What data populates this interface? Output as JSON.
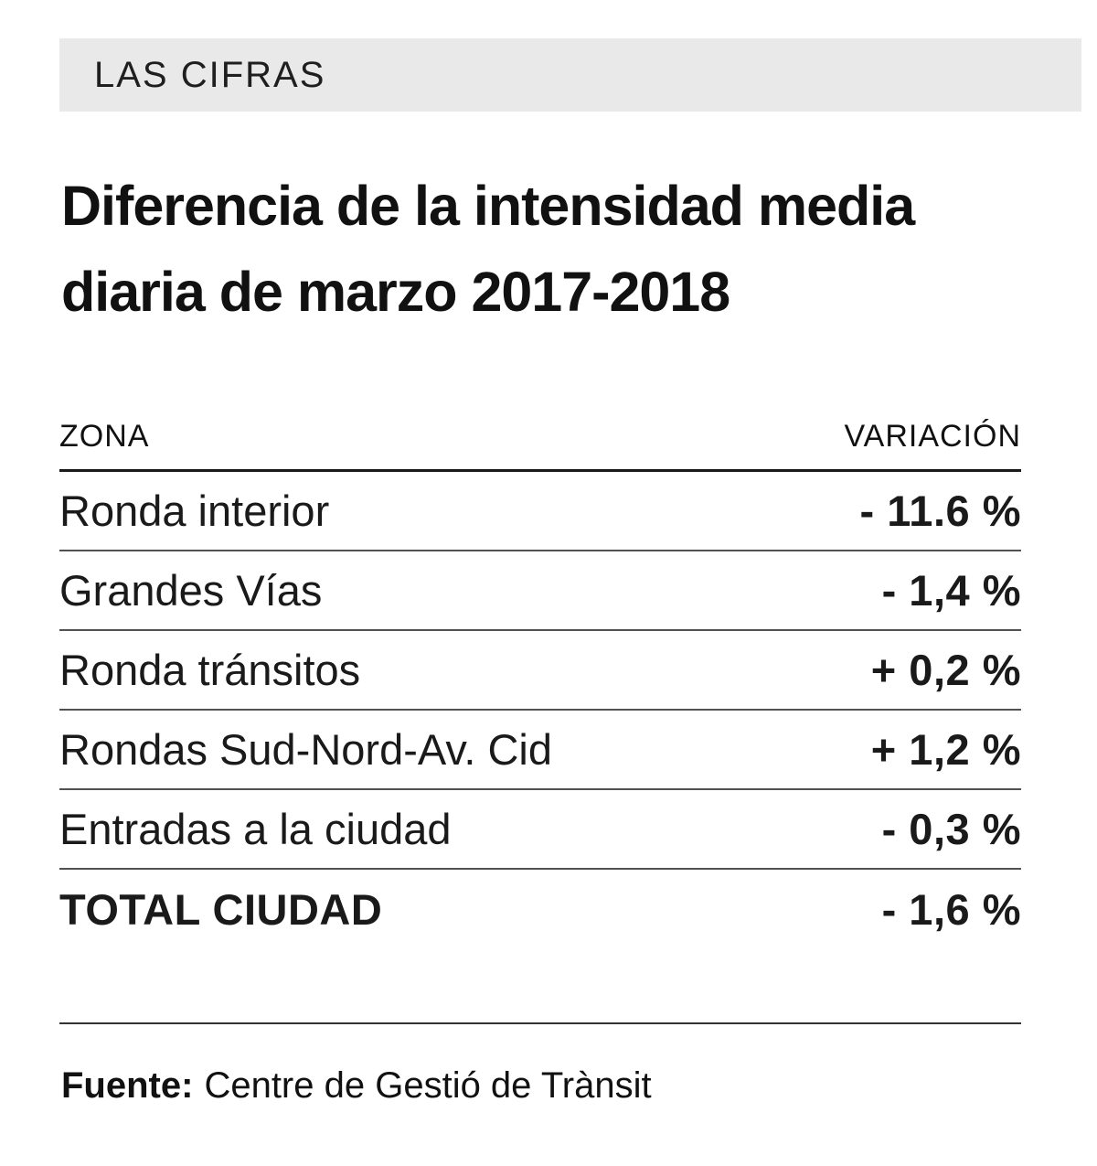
{
  "kicker": "LAS CIFRAS",
  "title": "Diferencia de la intensidad media diaria de marzo 2017-2018",
  "table": {
    "columns": {
      "zona": "ZONA",
      "variacion": "VARIACIÓN"
    },
    "rows": [
      {
        "zona": "Ronda interior",
        "variacion": "- 11.6 %"
      },
      {
        "zona": "Grandes Vías",
        "variacion": "- 1,4 %"
      },
      {
        "zona": "Ronda tránsitos",
        "variacion": "+ 0,2 %"
      },
      {
        "zona": "Rondas Sud-Nord-Av. Cid",
        "variacion": "+ 1,2 %"
      },
      {
        "zona": "Entradas a la ciudad",
        "variacion": "- 0,3 %"
      },
      {
        "zona": "TOTAL CIUDAD",
        "variacion": "- 1,6 %"
      }
    ]
  },
  "source": {
    "label": "Fuente:",
    "text": "Centre de Gestió de Trànsit"
  },
  "colors": {
    "band_background": "#e9e9e9",
    "text": "#111111",
    "rule": "#515151"
  },
  "chart_data": {
    "type": "table",
    "title": "Diferencia de la intensidad media diaria de marzo 2017-2018",
    "columns": [
      "ZONA",
      "VARIACIÓN"
    ],
    "categories": [
      "Ronda interior",
      "Grandes Vías",
      "Ronda tránsitos",
      "Rondas Sud-Nord-Av. Cid",
      "Entradas a la ciudad",
      "TOTAL CIUDAD"
    ],
    "values": [
      -11.6,
      -1.4,
      0.2,
      1.2,
      -0.3,
      -1.6
    ],
    "unit": "%",
    "value_labels": [
      "- 11.6 %",
      "- 1,4 %",
      "+ 0,2 %",
      "+ 1,2 %",
      "- 0,3 %",
      "- 1,6 %"
    ],
    "source": "Fuente: Centre de Gestió de Trànsit"
  }
}
